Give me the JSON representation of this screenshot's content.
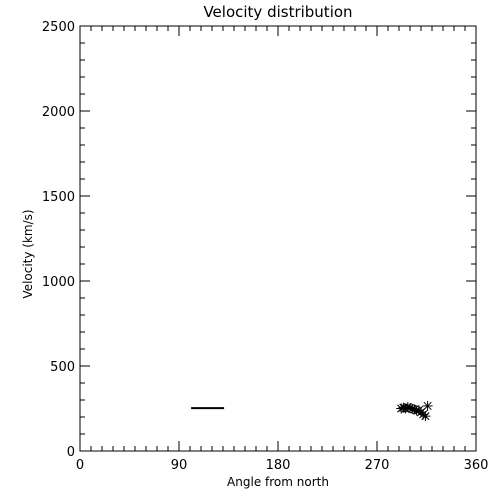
{
  "chart_data": {
    "type": "scatter",
    "title": "Velocity distribution",
    "xlabel": "Angle from north",
    "ylabel": "Velocity (km/s)",
    "xlim": [
      0,
      360
    ],
    "ylim": [
      0,
      2500
    ],
    "x_ticks": [
      0,
      90,
      180,
      270,
      360
    ],
    "x_tick_labels": [
      "0",
      "90",
      "180",
      "270",
      "360"
    ],
    "y_ticks": [
      0,
      500,
      1000,
      1500,
      2000,
      2500
    ],
    "y_tick_labels": [
      "0",
      "500",
      "1000",
      "1500",
      "2000",
      "2500"
    ],
    "x_minor_step": 10,
    "y_minor_step": 100,
    "grid": false,
    "legend": "none",
    "color": "#000000",
    "line_segment": {
      "x": [
        101,
        131
      ],
      "y": [
        252,
        252
      ]
    },
    "series": [
      {
        "marker": "asterisk",
        "x": [
          292,
          294,
          296,
          298,
          300,
          302,
          304,
          306,
          308,
          310,
          312,
          314,
          316
        ],
        "y": [
          250,
          255,
          250,
          258,
          252,
          248,
          245,
          238,
          240,
          228,
          215,
          205,
          265
        ]
      }
    ]
  }
}
